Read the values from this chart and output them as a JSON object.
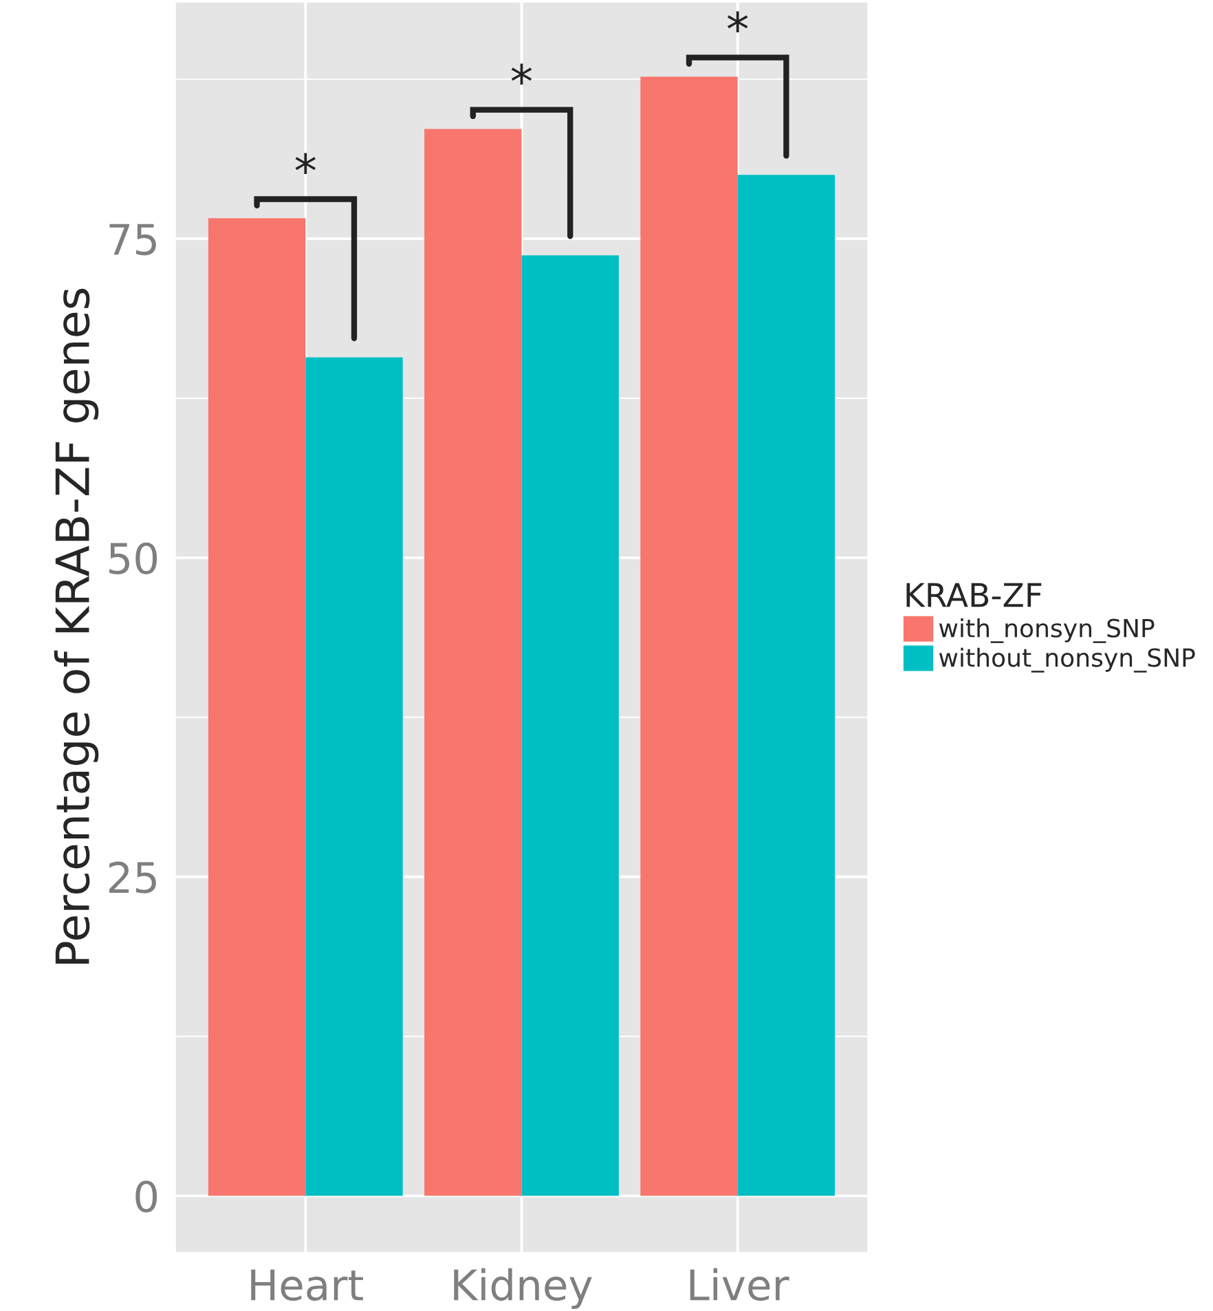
{
  "chart_data": {
    "type": "bar",
    "ylabel": "Percentage of KRAB-ZF genes",
    "legend_title": "KRAB-ZF",
    "categories": [
      "Heart",
      "Kidney",
      "Liver"
    ],
    "series": [
      {
        "name": "with_nonsyn_SNP",
        "color": "#f8766d",
        "values": [
          76.6,
          83.6,
          87.7
        ]
      },
      {
        "name": "without_nonsyn_SNP",
        "color": "#00bfc4",
        "values": [
          65.7,
          73.7,
          80.0
        ]
      }
    ],
    "ylim": [
      -4.4,
      93.5
    ],
    "yticks": [
      0,
      25,
      50,
      75
    ],
    "grid": true,
    "legend": "right",
    "annotations": [
      "*",
      "*",
      "*"
    ]
  }
}
